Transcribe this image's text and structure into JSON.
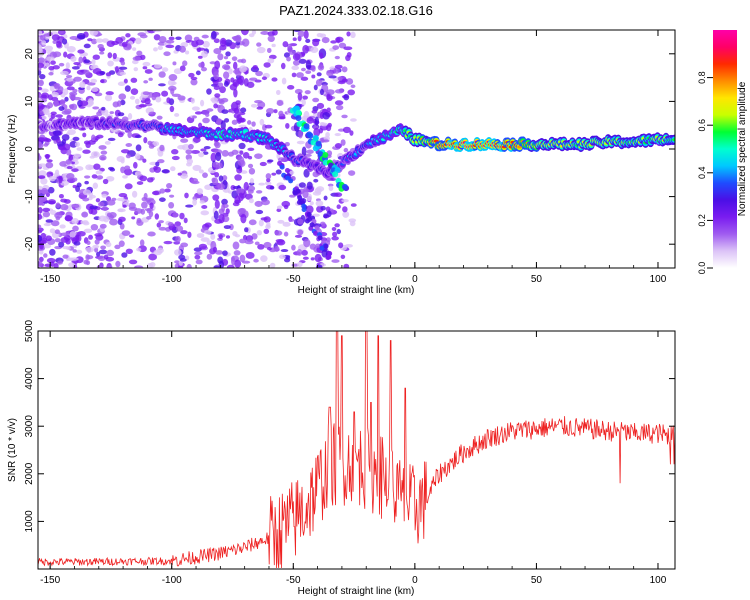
{
  "figure": {
    "title": "PAZ1.2024.333.02.18.G16"
  },
  "chart_data": [
    {
      "type": "heatmap",
      "xlabel": "Height of straight line (km)",
      "ylabel": "Frequency (Hz)",
      "xlim": [
        -155,
        107
      ],
      "ylim": [
        -25,
        25
      ],
      "xticks": [
        -150,
        -100,
        -50,
        0,
        50,
        100
      ],
      "yticks": [
        -20,
        -10,
        0,
        10,
        20
      ],
      "grid": false,
      "colorbar": {
        "label": "Normalized spectral amplitude",
        "range": [
          0,
          1
        ],
        "ticks": [
          0.0,
          0.2,
          0.4,
          0.6,
          0.8
        ],
        "colors": [
          "#ffffff",
          "#dcc3f7",
          "#a05cf0",
          "#7a1cf0",
          "#4b0fe6",
          "#1f4cff",
          "#00c8ff",
          "#00ffcf",
          "#00ff33",
          "#c8ff00",
          "#ffe600",
          "#ff8c00",
          "#ff2a00",
          "#ff0066",
          "#ff00a8"
        ]
      },
      "ridge": {
        "x": [
          -150,
          -140,
          -130,
          -120,
          -110,
          -100,
          -90,
          -80,
          -70,
          -60,
          -55,
          -50,
          -45,
          -40,
          -35,
          -30,
          -25,
          -20,
          -15,
          -10,
          -5,
          0,
          10,
          20,
          30,
          40,
          50,
          60,
          70,
          80,
          90,
          100,
          107
        ],
        "y": [
          5,
          5.5,
          5.5,
          5.2,
          5,
          4,
          3.5,
          3,
          3.2,
          2,
          0,
          -2,
          -3,
          -4,
          -5,
          -3,
          -1,
          1,
          2,
          3,
          4,
          2,
          1,
          1,
          1,
          1,
          1,
          1,
          1,
          1.5,
          1.5,
          2,
          2
        ],
        "amplitude": [
          0.25,
          0.25,
          0.28,
          0.3,
          0.35,
          0.45,
          0.45,
          0.5,
          0.5,
          0.45,
          0.4,
          0.35,
          0.3,
          0.3,
          0.3,
          0.35,
          0.4,
          0.4,
          0.45,
          0.5,
          0.55,
          0.65,
          0.85,
          0.9,
          0.9,
          0.85,
          0.7,
          0.65,
          0.65,
          0.65,
          0.6,
          0.6,
          0.6
        ]
      }
    },
    {
      "type": "line",
      "xlabel": "Height of straight line (km)",
      "ylabel": "SNR (10 * v/v)",
      "xlim": [
        -155,
        107
      ],
      "ylim": [
        0,
        5000
      ],
      "xticks": [
        -150,
        -100,
        -50,
        0,
        50,
        100
      ],
      "yticks": [
        1000,
        2000,
        3000,
        4000,
        5000
      ],
      "grid": false,
      "series": [
        {
          "color": "#ee2222",
          "x": [
            -155,
            -140,
            -120,
            -100,
            -90,
            -80,
            -70,
            -60,
            -55,
            -50,
            -45,
            -40,
            -35,
            -30,
            -25,
            -20,
            -15,
            -10,
            -5,
            0,
            5,
            10,
            20,
            30,
            40,
            50,
            60,
            70,
            80,
            90,
            100,
            107
          ],
          "y": [
            150,
            150,
            160,
            170,
            250,
            330,
            450,
            650,
            800,
            1000,
            1300,
            1700,
            2200,
            2200,
            2300,
            2100,
            2000,
            1800,
            1400,
            1300,
            1500,
            2000,
            2450,
            2750,
            2900,
            2950,
            3000,
            2950,
            2900,
            2850,
            2850,
            2800
          ]
        }
      ],
      "spikes": {
        "x": [
          -35,
          -32,
          -30,
          -25,
          -20,
          -18,
          -15,
          -10,
          -4
        ],
        "y": [
          3400,
          5000,
          4900,
          3300,
          5100,
          3500,
          4900,
          4800,
          3800
        ]
      }
    }
  ]
}
